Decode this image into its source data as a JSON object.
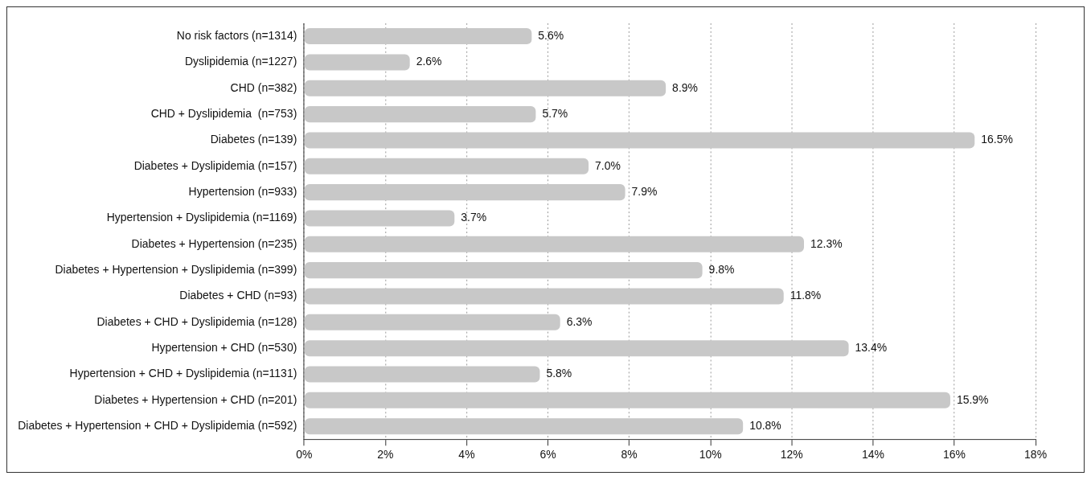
{
  "chart_data": {
    "type": "bar",
    "orientation": "horizontal",
    "categories": [
      "No risk factors (n=1314)",
      "Dyslipidemia (n=1227)",
      "CHD (n=382)",
      "CHD + Dyslipidemia  (n=753)",
      "Diabetes (n=139)",
      "Diabetes + Dyslipidemia (n=157)",
      "Hypertension (n=933)",
      "Hypertension + Dyslipidemia (n=1169)",
      "Diabetes + Hypertension (n=235)",
      "Diabetes + Hypertension + Dyslipidemia (n=399)",
      "Diabetes + CHD (n=93)",
      "Diabetes + CHD + Dyslipidemia (n=128)",
      "Hypertension + CHD (n=530)",
      "Hypertension + CHD + Dyslipidemia (n=1131)",
      "Diabetes + Hypertension + CHD (n=201)",
      "Diabetes + Hypertension + CHD + Dyslipidemia (n=592)"
    ],
    "values": [
      5.6,
      2.6,
      8.9,
      5.7,
      16.5,
      7.0,
      7.9,
      3.7,
      12.3,
      9.8,
      11.8,
      6.3,
      13.4,
      5.8,
      15.9,
      10.8
    ],
    "value_labels": [
      "5.6%",
      "2.6%",
      "8.9%",
      "5.7%",
      "16.5%",
      "7.0%",
      "7.9%",
      "3.7%",
      "12.3%",
      "9.8%",
      "11.8%",
      "6.3%",
      "13.4%",
      "5.8%",
      "15.9%",
      "10.8%"
    ],
    "color": "#c8c8c8",
    "xlim": [
      0,
      18
    ],
    "xticks": [
      {
        "value": 0,
        "label": "0%"
      },
      {
        "value": 2,
        "label": "2%"
      },
      {
        "value": 4,
        "label": "4%"
      },
      {
        "value": 6,
        "label": "6%"
      },
      {
        "value": 8,
        "label": "8%"
      },
      {
        "value": 10,
        "label": "10%"
      },
      {
        "value": 12,
        "label": "12%"
      },
      {
        "value": 14,
        "label": "14%"
      },
      {
        "value": 16,
        "label": "16%"
      },
      {
        "value": 18,
        "label": "18%"
      }
    ],
    "grid": "x",
    "legend": false
  }
}
